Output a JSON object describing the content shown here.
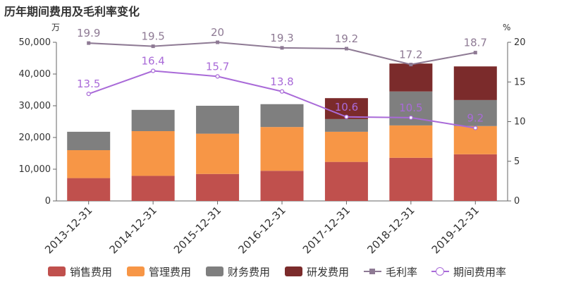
{
  "title": "历年期间费用及毛利率变化",
  "colors": {
    "sales": "#c0504d",
    "admin": "#f79646",
    "finance": "#7f7f7f",
    "rnd": "#7b2b2b",
    "gross_margin": "#8e7a94",
    "expense_rate": "#a96ad8",
    "axis_text": "#333333",
    "grid": "#e6e6e6"
  },
  "chart_data": {
    "type": "bar",
    "stacked": true,
    "categories": [
      "2013-12-31",
      "2014-12-31",
      "2015-12-31",
      "2016-12-31",
      "2017-12-31",
      "2018-12-31",
      "2019-12-31"
    ],
    "series": [
      {
        "name": "销售费用",
        "type": "bar",
        "axis": "left",
        "color_key": "sales",
        "values": [
          7200,
          7900,
          8500,
          9500,
          12300,
          13600,
          14700
        ]
      },
      {
        "name": "管理费用",
        "type": "bar",
        "axis": "left",
        "color_key": "admin",
        "values": [
          8800,
          14100,
          12700,
          13800,
          9500,
          10200,
          8900
        ]
      },
      {
        "name": "财务费用",
        "type": "bar",
        "axis": "left",
        "color_key": "finance",
        "values": [
          5800,
          6700,
          8800,
          7200,
          4000,
          10700,
          8200
        ]
      },
      {
        "name": "研发费用",
        "type": "bar",
        "axis": "left",
        "color_key": "rnd",
        "values": [
          0,
          0,
          0,
          0,
          6600,
          8800,
          10600
        ]
      },
      {
        "name": "毛利率",
        "type": "line",
        "axis": "right",
        "color_key": "gross_margin",
        "marker": "square",
        "values": [
          19.9,
          19.5,
          20,
          19.3,
          19.2,
          17.2,
          18.7
        ],
        "labels": [
          "19.9",
          "19.5",
          "20",
          "19.3",
          "19.2",
          "17.2",
          "18.7"
        ]
      },
      {
        "name": "期间费用率",
        "type": "line",
        "axis": "right",
        "color_key": "expense_rate",
        "marker": "circle",
        "values": [
          13.5,
          16.4,
          15.7,
          13.8,
          10.6,
          10.5,
          9.2
        ],
        "labels": [
          "13.5",
          "16.4",
          "15.7",
          "13.8",
          "10.6",
          "10.5",
          "9.2"
        ]
      }
    ],
    "left_axis": {
      "unit": "万",
      "ylim": [
        0,
        50000
      ],
      "ticks": [
        0,
        10000,
        20000,
        30000,
        40000,
        50000
      ],
      "tick_labels": [
        "0",
        "10,000",
        "20,000",
        "30,000",
        "40,000",
        "50,000"
      ]
    },
    "right_axis": {
      "unit": "%",
      "ylim": [
        0,
        20
      ],
      "ticks": [
        0,
        5,
        10,
        15,
        20
      ],
      "tick_labels": [
        "0",
        "5",
        "10",
        "15",
        "20"
      ]
    },
    "grid": false,
    "legend_position": "bottom"
  }
}
